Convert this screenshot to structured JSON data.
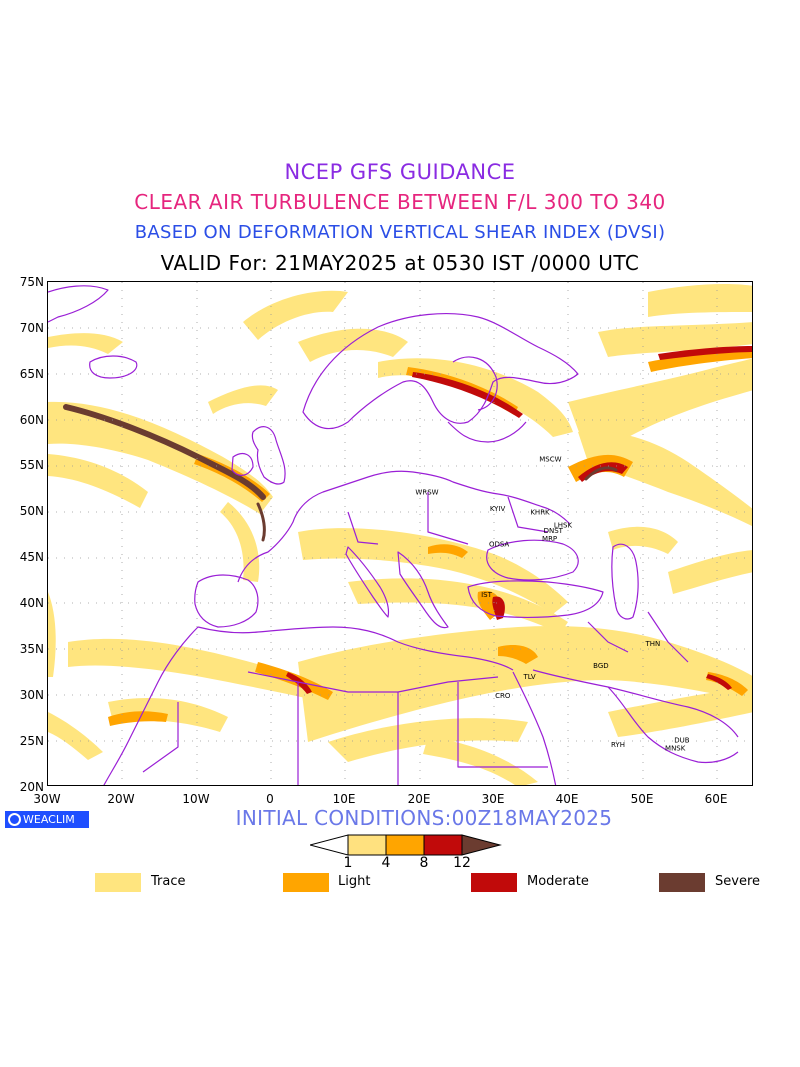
{
  "titles": {
    "line1": "NCEP GFS GUIDANCE",
    "line2": "CLEAR AIR TURBULENCE BETWEEN F/L 300 TO 340",
    "line3": "BASED ON DEFORMATION VERTICAL SHEAR INDEX (DVSI)",
    "line4": "VALID For: 21MAY2025 at 0530 IST /0000 UTC"
  },
  "map": {
    "lon_range": [
      -30,
      65
    ],
    "lat_range": [
      20,
      75
    ],
    "lat_labels": [
      "75N",
      "70N",
      "65N",
      "60N",
      "55N",
      "50N",
      "45N",
      "40N",
      "35N",
      "30N",
      "25N",
      "20N"
    ],
    "lon_labels": [
      "30W",
      "20W",
      "10W",
      "0",
      "10E",
      "20E",
      "30E",
      "40E",
      "50E",
      "60E"
    ],
    "cities": [
      {
        "name": "MSCW",
        "lon": 37.6,
        "lat": 55.8
      },
      {
        "name": "WRSW",
        "lon": 21.0,
        "lat": 52.2
      },
      {
        "name": "KYIV",
        "lon": 30.5,
        "lat": 50.4
      },
      {
        "name": "KHRK",
        "lon": 36.2,
        "lat": 50.0
      },
      {
        "name": "LHSK",
        "lon": 39.3,
        "lat": 48.6
      },
      {
        "name": "DNST",
        "lon": 38.0,
        "lat": 48.0
      },
      {
        "name": "MRP",
        "lon": 37.5,
        "lat": 47.1
      },
      {
        "name": "ODSA",
        "lon": 30.7,
        "lat": 46.5
      },
      {
        "name": "IST",
        "lon": 29.0,
        "lat": 41.0
      },
      {
        "name": "THN",
        "lon": 51.4,
        "lat": 35.7
      },
      {
        "name": "BGD",
        "lon": 44.4,
        "lat": 33.3
      },
      {
        "name": "TLV",
        "lon": 34.8,
        "lat": 32.1
      },
      {
        "name": "CRO",
        "lon": 31.2,
        "lat": 30.0
      },
      {
        "name": "MNSK",
        "lon": 54.4,
        "lat": 24.3
      },
      {
        "name": "DUB",
        "lon": 55.3,
        "lat": 25.2
      },
      {
        "name": "RYH",
        "lon": 46.7,
        "lat": 24.7
      }
    ]
  },
  "branding": "WEACLIM",
  "initial_conditions": "INITIAL CONDITIONS:00Z18MAY2025",
  "colorbar": {
    "ticks": [
      "1",
      "4",
      "8",
      "12"
    ],
    "colors": [
      "#ffffff",
      "#ffe17f",
      "#ffa500",
      "#c10a0a",
      "#6b3c30"
    ]
  },
  "legend": [
    {
      "label": "Trace",
      "color": "#ffe57f"
    },
    {
      "label": "Light",
      "color": "#ffa500"
    },
    {
      "label": "Moderate",
      "color": "#c10a0a"
    },
    {
      "label": "Severe",
      "color": "#6b3c30"
    }
  ],
  "colors": {
    "coastline": "#9a1fd6",
    "title1": "#8a2be2",
    "title2": "#e6257e",
    "title3": "#2b4ee6",
    "init": "#6a78e8"
  }
}
